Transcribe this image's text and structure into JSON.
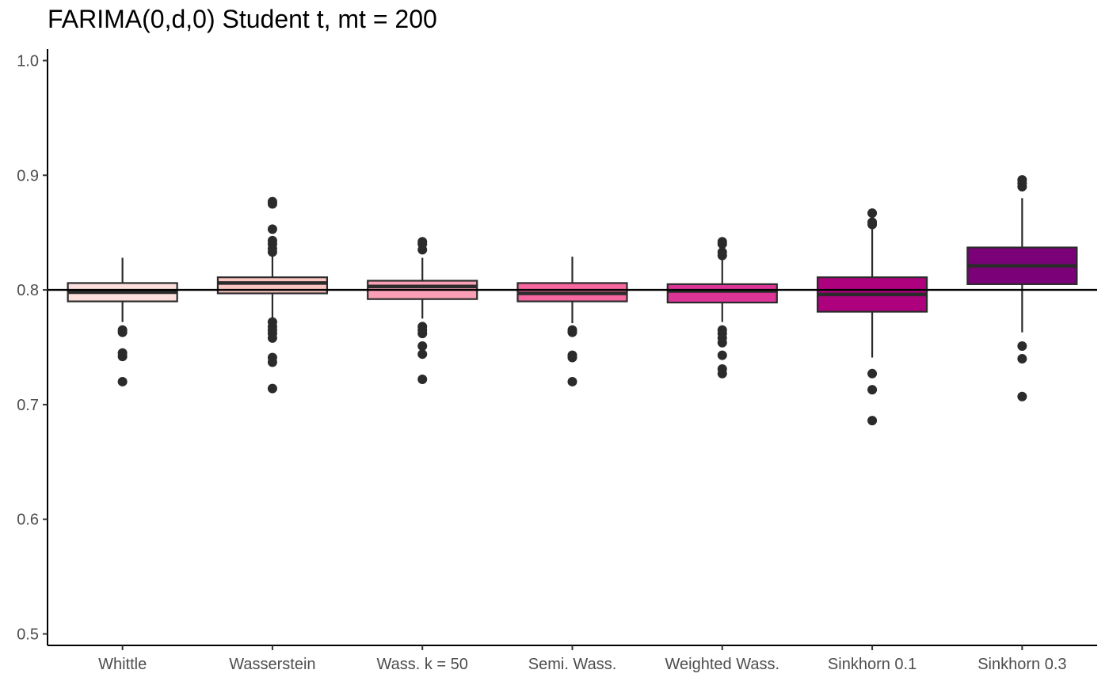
{
  "chart_data": {
    "type": "boxplot",
    "title": "FARIMA(0,d,0) Student t, mt = 200",
    "xlabel": "",
    "ylabel": "",
    "ylim": [
      0.49,
      1.01
    ],
    "yticks": [
      "0.5",
      "0.6",
      "0.7",
      "0.8",
      "0.9",
      "1.0"
    ],
    "reference_line": 0.8,
    "grid": false,
    "legend": "none",
    "categories": [
      "Whittle",
      "Wasserstein",
      "Wass. k = 50",
      "Semi. Wass.",
      "Weighted Wass.",
      "Sinkhorn 0.1",
      "Sinkhorn 0.3"
    ],
    "boxes": [
      {
        "category": "Whittle",
        "color": "#fde0dd",
        "whisker_low": 0.772,
        "q1": 0.79,
        "median": 0.798,
        "q3": 0.806,
        "whisker_high": 0.828,
        "outliers": [
          0.765,
          0.763,
          0.745,
          0.742,
          0.72
        ]
      },
      {
        "category": "Wasserstein",
        "color": "#fcc5c0",
        "whisker_low": 0.775,
        "q1": 0.797,
        "median": 0.806,
        "q3": 0.811,
        "whisker_high": 0.831,
        "outliers": [
          0.877,
          0.875,
          0.853,
          0.843,
          0.84,
          0.836,
          0.833,
          0.772,
          0.768,
          0.765,
          0.762,
          0.758,
          0.741,
          0.737,
          0.714
        ]
      },
      {
        "category": "Wass. k = 50",
        "color": "#fa9fb5",
        "whisker_low": 0.775,
        "q1": 0.792,
        "median": 0.803,
        "q3": 0.808,
        "whisker_high": 0.828,
        "outliers": [
          0.842,
          0.84,
          0.835,
          0.768,
          0.765,
          0.762,
          0.751,
          0.744,
          0.722
        ]
      },
      {
        "category": "Semi. Wass.",
        "color": "#f768a1",
        "whisker_low": 0.771,
        "q1": 0.79,
        "median": 0.797,
        "q3": 0.806,
        "whisker_high": 0.829,
        "outliers": [
          0.765,
          0.763,
          0.743,
          0.741,
          0.72
        ]
      },
      {
        "category": "Weighted Wass.",
        "color": "#dd3497",
        "whisker_low": 0.772,
        "q1": 0.789,
        "median": 0.799,
        "q3": 0.805,
        "whisker_high": 0.828,
        "outliers": [
          0.842,
          0.84,
          0.833,
          0.83,
          0.765,
          0.762,
          0.758,
          0.754,
          0.743,
          0.731,
          0.727
        ]
      },
      {
        "category": "Sinkhorn 0.1",
        "color": "#ae017e",
        "whisker_low": 0.741,
        "q1": 0.781,
        "median": 0.796,
        "q3": 0.811,
        "whisker_high": 0.853,
        "outliers": [
          0.867,
          0.859,
          0.857,
          0.727,
          0.713,
          0.686
        ]
      },
      {
        "category": "Sinkhorn 0.3",
        "color": "#7a0177",
        "whisker_low": 0.763,
        "q1": 0.805,
        "median": 0.821,
        "q3": 0.837,
        "whisker_high": 0.88,
        "outliers": [
          0.896,
          0.893,
          0.89,
          0.751,
          0.74,
          0.707
        ]
      }
    ]
  }
}
